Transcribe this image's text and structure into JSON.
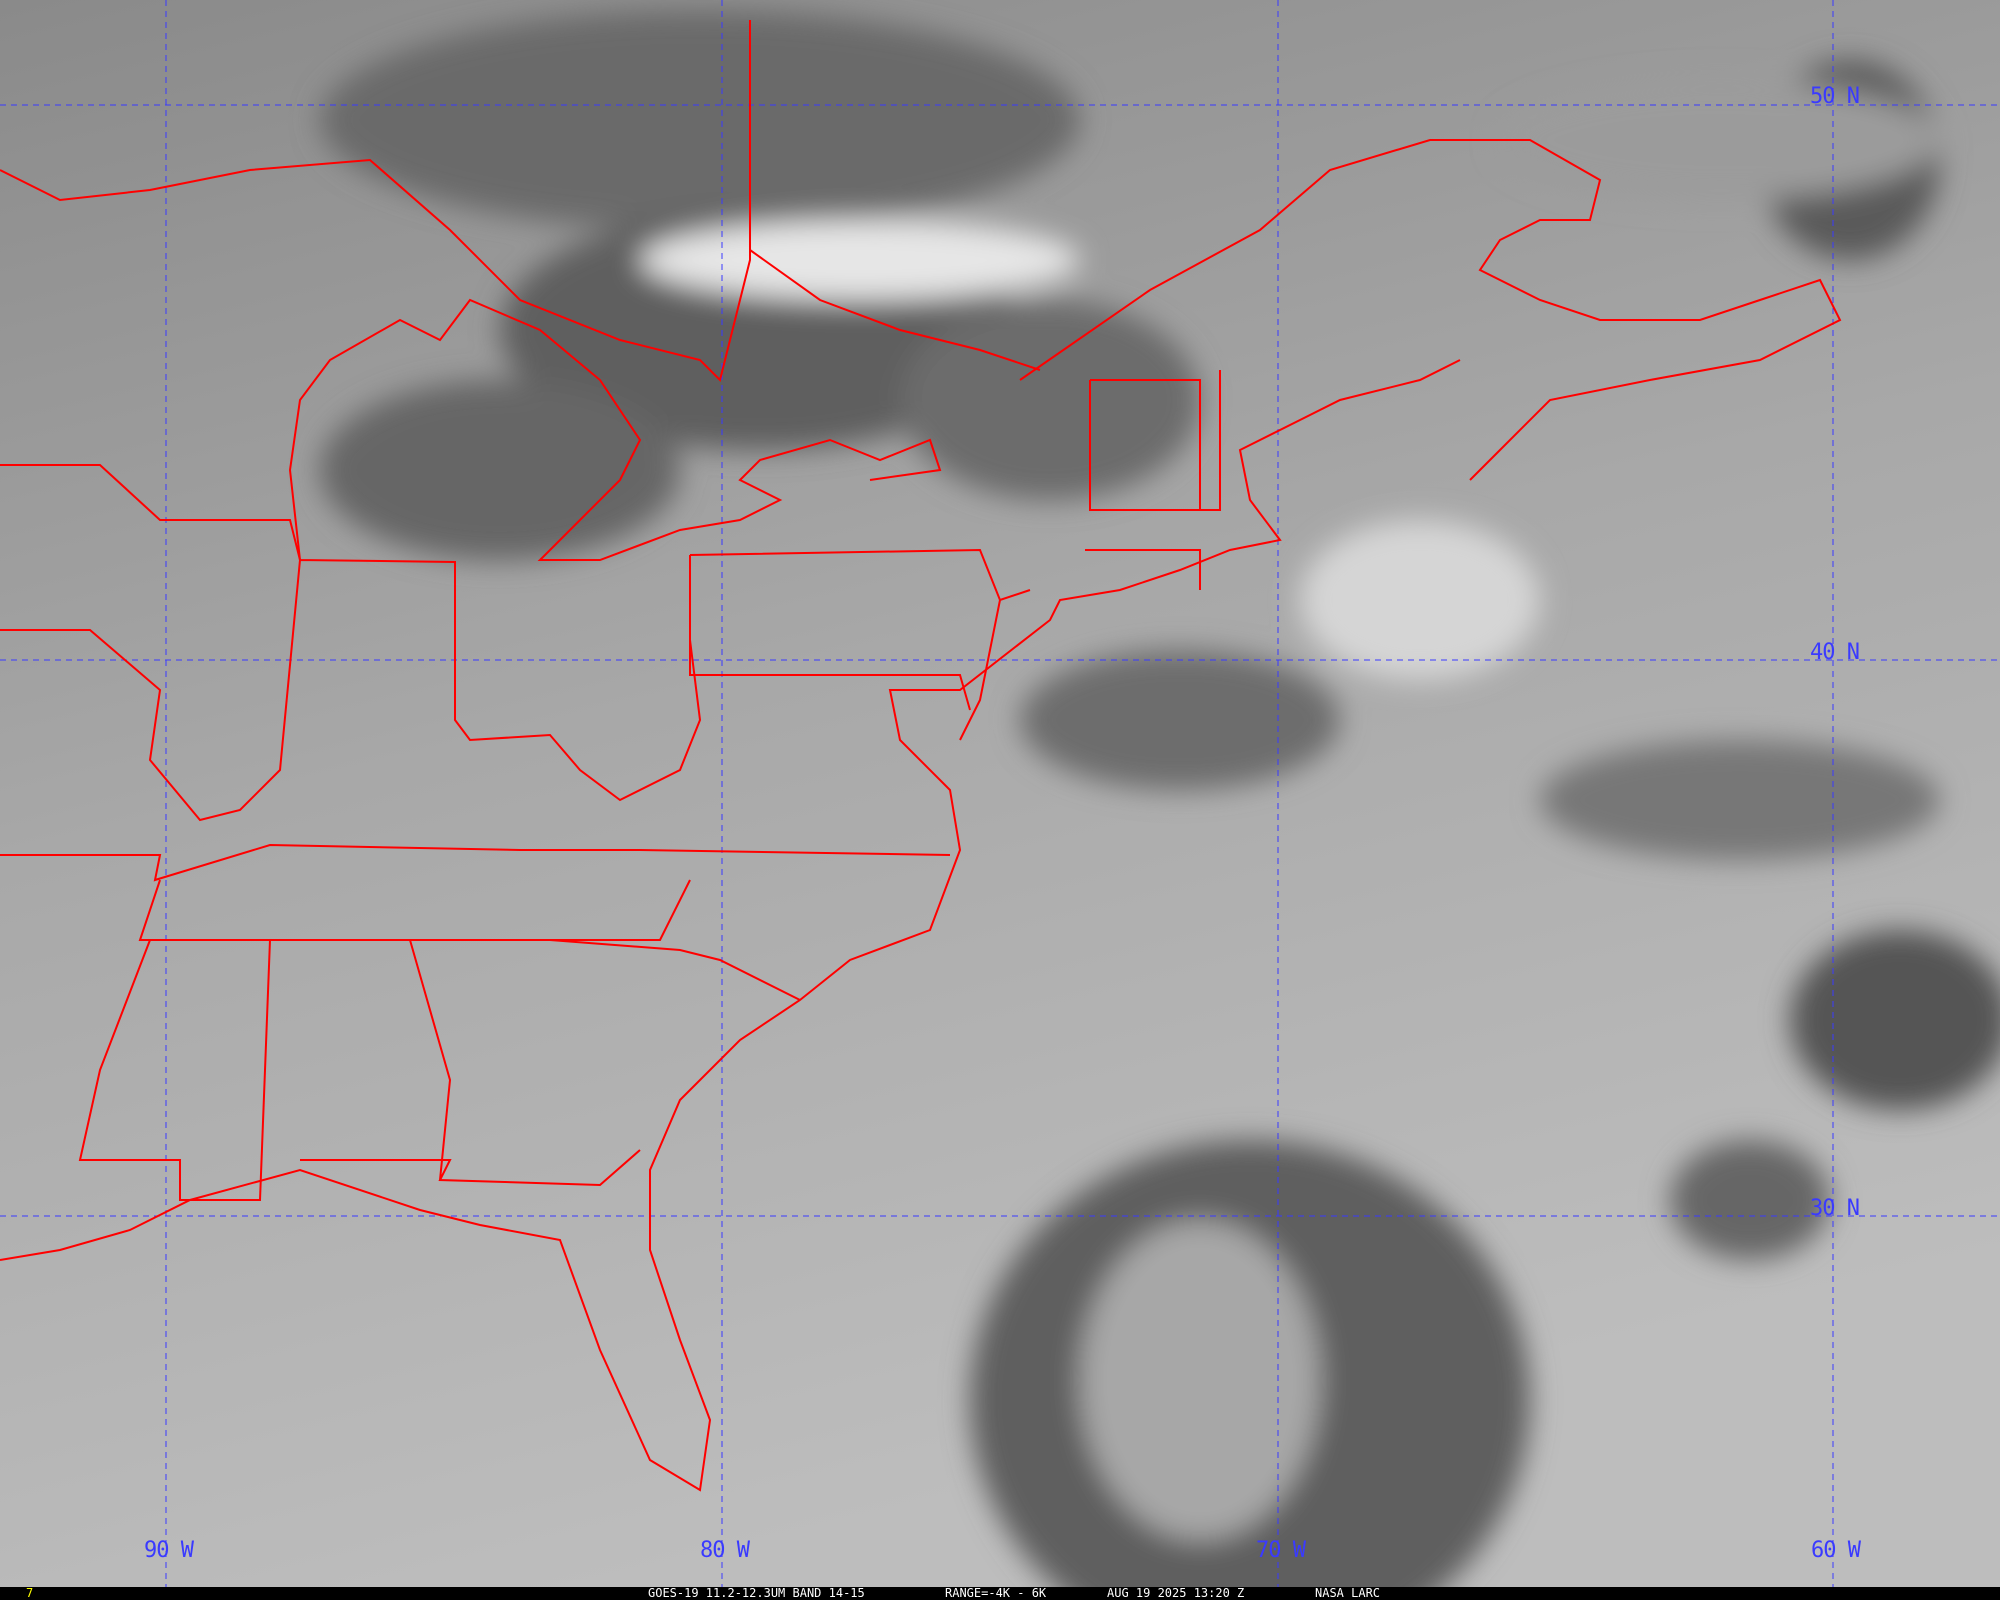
{
  "map": {
    "overlay_color": "#ff0000",
    "grid_color": "#3a3aff",
    "latitude_labels": [
      "50 N",
      "40 N",
      "30 N"
    ],
    "longitude_labels": [
      "90 W",
      "80 W",
      "70 W",
      "60 W"
    ]
  },
  "status_bar": {
    "frame_number": "7",
    "product": "GOES-19 11.2-12.3UM BAND 14-15",
    "range": "RANGE=-4K - 6K",
    "datetime": "AUG 19 2025 13:20 Z",
    "credit": "NASA LARC",
    "frame_color": "#ffff00"
  }
}
